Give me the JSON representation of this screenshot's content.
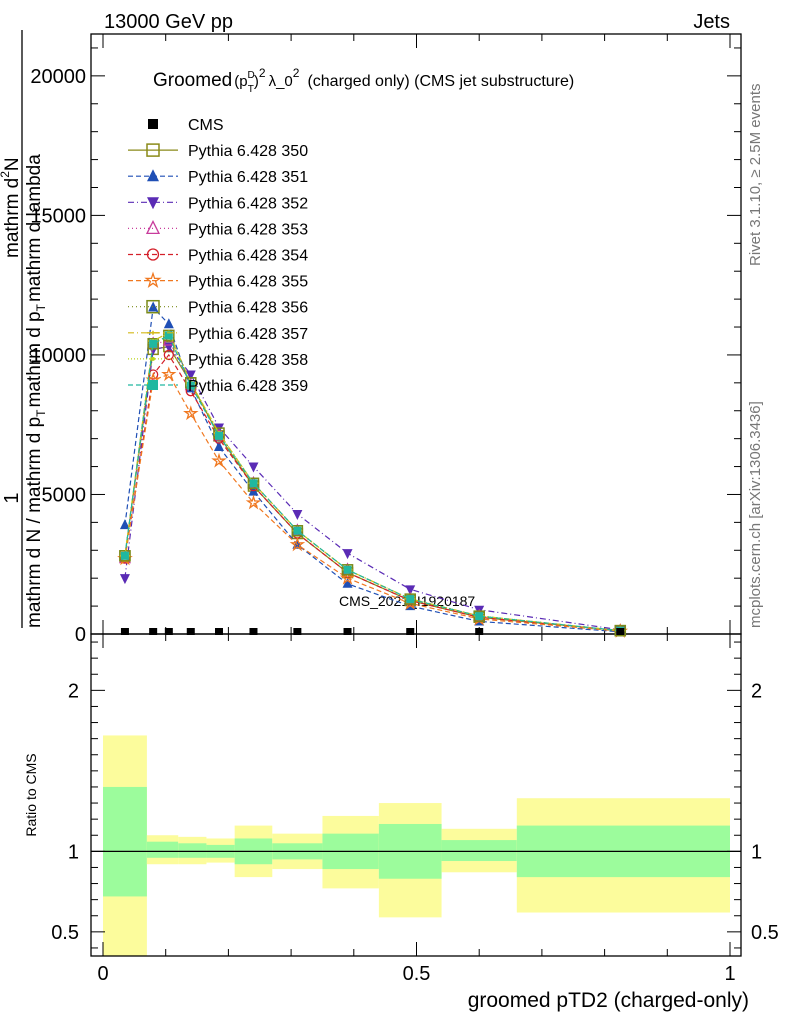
{
  "header": {
    "left": "13000 GeV pp",
    "right": "Jets"
  },
  "side": {
    "rivet": "Rivet 3.1.10, ≥ 2.5M events",
    "mcplots": "mcplots.cern.ch [arXiv:1306.3436]"
  },
  "chart_data": [
    {
      "type": "line",
      "title": {
        "prefix": "Groomed",
        "p": "(p",
        "sup_D": "D",
        "sub_T": "T",
        "close_sup2": ")",
        "two": "2",
        "lambda": "λ_0",
        "lambda_sup": "2",
        "suffix": "(charged only) (CMS jet substructure)"
      },
      "ylabel": {
        "one": "1",
        "l1": "mathrm dN / mathrm d p_T",
        "l2": "mathrm d p_T mathrm d lambda",
        "l3": "mathrm d²N"
      },
      "ylabel_parts": {
        "num1": "mathrm d N / mathrm d p",
        "t1": "T",
        "num2": "mathrm d p",
        "t2": "T",
        "num3": "mathrm d lambda",
        "num4": "mathrm d",
        "two": "2",
        "n": "N"
      },
      "xlim": [
        0,
        1
      ],
      "ylim": [
        0,
        21500
      ],
      "yticks": [
        0,
        5000,
        10000,
        15000,
        20000
      ],
      "ytick_labels": [
        "0",
        "5000",
        "10000",
        "15000",
        "20000"
      ],
      "watermark": "CMS_2021_I1920187",
      "x": [
        0.035,
        0.08,
        0.105,
        0.14,
        0.185,
        0.24,
        0.31,
        0.39,
        0.49,
        0.6,
        0.825
      ],
      "cms": [
        0,
        0,
        0,
        0,
        0,
        0,
        0,
        0,
        0,
        0,
        0
      ],
      "series": [
        {
          "name": "Pythia 6.428 350",
          "color": "#8a8a18",
          "marker": "open-square",
          "dash": "",
          "values": [
            2800,
            10200,
            10300,
            9000,
            7100,
            5300,
            3600,
            2200,
            1200,
            600,
            120
          ]
        },
        {
          "name": "Pythia 6.428 351",
          "color": "#1f4fb5",
          "marker": "filled-triangle",
          "dash": "5,3",
          "values": [
            3900,
            11700,
            11100,
            8800,
            6700,
            5100,
            3200,
            1800,
            1000,
            450,
            80
          ]
        },
        {
          "name": "Pythia 6.428 352",
          "color": "#5a2bb5",
          "marker": "filled-triangle-down",
          "dash": "6,3,1,3",
          "values": [
            2000,
            10200,
            10300,
            9300,
            7400,
            6000,
            4300,
            2900,
            1600,
            870,
            150
          ]
        },
        {
          "name": "Pythia 6.428 353",
          "color": "#c83c9c",
          "marker": "open-triangle",
          "dash": "1,3",
          "values": [
            2700,
            10400,
            10500,
            8900,
            7100,
            5400,
            3700,
            2300,
            1250,
            640,
            120
          ]
        },
        {
          "name": "Pythia 6.428 354",
          "color": "#d4202a",
          "marker": "open-circle",
          "dash": "5,3",
          "values": [
            2700,
            9300,
            10000,
            8700,
            7000,
            5300,
            3600,
            2200,
            1200,
            600,
            110
          ]
        },
        {
          "name": "Pythia 6.428 355",
          "color": "#f07820",
          "marker": "open-star",
          "dash": "5,3",
          "values": [
            2700,
            9100,
            9300,
            7900,
            6200,
            4700,
            3200,
            2000,
            1100,
            540,
            100
          ]
        },
        {
          "name": "Pythia 6.428 356",
          "color": "#7a8a18",
          "marker": "open-square",
          "dash": "1,3",
          "values": [
            2800,
            10400,
            10700,
            9000,
            7200,
            5400,
            3700,
            2300,
            1250,
            640,
            120
          ]
        },
        {
          "name": "Pythia 6.428 357",
          "color": "#d4b818",
          "marker": "dash-plus",
          "dash": "6,3,1,3",
          "values": [
            2800,
            10500,
            10800,
            9000,
            7200,
            5400,
            3700,
            2300,
            1260,
            650,
            120
          ]
        },
        {
          "name": "Pythia 6.428 358",
          "color": "#b8d418",
          "marker": "small-dot",
          "dash": "1,2",
          "values": [
            2800,
            10500,
            10800,
            9000,
            7200,
            5400,
            3700,
            2300,
            1260,
            650,
            120
          ]
        },
        {
          "name": "Pythia 6.428 359",
          "color": "#20b8a0",
          "marker": "filled-square",
          "dash": "5,3",
          "values": [
            2800,
            10400,
            10700,
            8900,
            7100,
            5400,
            3700,
            2300,
            1250,
            640,
            120
          ]
        }
      ],
      "legend": {
        "data_label": "CMS",
        "placement": "top-left"
      }
    },
    {
      "type": "area",
      "ylabel": "Ratio to CMS",
      "xlabel": "groomed pTD2 (charged-only)",
      "xlim": [
        0,
        1
      ],
      "ylim": [
        0.35,
        2.35
      ],
      "yticks": [
        0.5,
        1,
        2
      ],
      "ytick_labels": [
        "0.5",
        "1",
        "2"
      ],
      "xticks": [
        0,
        0.5,
        1
      ],
      "xtick_labels": [
        "0",
        "0.5",
        "1"
      ],
      "bins": [
        {
          "x": [
            0.0,
            0.07
          ],
          "green": [
            0.72,
            1.4
          ],
          "yellow": [
            0.35,
            1.72
          ]
        },
        {
          "x": [
            0.07,
            0.12
          ],
          "green": [
            0.96,
            1.06
          ],
          "yellow": [
            0.92,
            1.1
          ]
        },
        {
          "x": [
            0.12,
            0.165
          ],
          "green": [
            0.96,
            1.05
          ],
          "yellow": [
            0.92,
            1.09
          ]
        },
        {
          "x": [
            0.165,
            0.21
          ],
          "green": [
            0.96,
            1.04
          ],
          "yellow": [
            0.93,
            1.08
          ]
        },
        {
          "x": [
            0.21,
            0.27
          ],
          "green": [
            0.92,
            1.08
          ],
          "yellow": [
            0.84,
            1.16
          ]
        },
        {
          "x": [
            0.27,
            0.35
          ],
          "green": [
            0.95,
            1.05
          ],
          "yellow": [
            0.89,
            1.11
          ]
        },
        {
          "x": [
            0.35,
            0.44
          ],
          "green": [
            0.89,
            1.11
          ],
          "yellow": [
            0.77,
            1.22
          ]
        },
        {
          "x": [
            0.44,
            0.54
          ],
          "green": [
            0.83,
            1.17
          ],
          "yellow": [
            0.59,
            1.3
          ]
        },
        {
          "x": [
            0.54,
            0.66
          ],
          "green": [
            0.94,
            1.07
          ],
          "yellow": [
            0.87,
            1.14
          ]
        },
        {
          "x": [
            0.66,
            1.0
          ],
          "green": [
            0.84,
            1.16
          ],
          "yellow": [
            0.62,
            1.33
          ]
        }
      ],
      "colors": {
        "green": "#9cfc9c",
        "yellow": "#fcfc9c"
      }
    }
  ]
}
